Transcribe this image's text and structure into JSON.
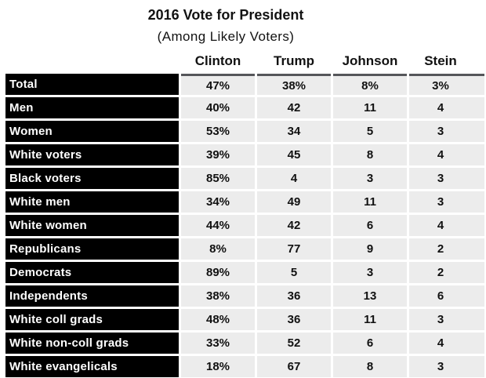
{
  "title": "2016 Vote for President",
  "subtitle": "(Among Likely Voters)",
  "colors": {
    "row_label_bg": "#000000",
    "row_label_fg": "#ffffff",
    "data_cell_bg": "#ececec",
    "data_cell_fg": "#111111",
    "header_rule": "#55565a",
    "page_bg": "#ffffff"
  },
  "chart_data": {
    "type": "table",
    "title": "2016 Vote for President",
    "subtitle": "(Among Likely Voters)",
    "columns": [
      "Clinton",
      "Trump",
      "Johnson",
      "Stein"
    ],
    "rows": [
      {
        "label": "Total",
        "values": [
          "47%",
          "38%",
          "8%",
          "3%"
        ]
      },
      {
        "label": "Men",
        "values": [
          "40%",
          "42",
          "11",
          "4"
        ]
      },
      {
        "label": "Women",
        "values": [
          "53%",
          "34",
          "5",
          "3"
        ]
      },
      {
        "label": "White voters",
        "values": [
          "39%",
          "45",
          "8",
          "4"
        ]
      },
      {
        "label": "Black voters",
        "values": [
          "85%",
          "4",
          "3",
          "3"
        ]
      },
      {
        "label": "White men",
        "values": [
          "34%",
          "49",
          "11",
          "3"
        ]
      },
      {
        "label": "White women",
        "values": [
          "44%",
          "42",
          "6",
          "4"
        ]
      },
      {
        "label": "Republicans",
        "values": [
          "8%",
          "77",
          "9",
          "2"
        ]
      },
      {
        "label": "Democrats",
        "values": [
          "89%",
          "5",
          "3",
          "2"
        ]
      },
      {
        "label": "Independents",
        "values": [
          "38%",
          "36",
          "13",
          "6"
        ]
      },
      {
        "label": "White coll grads",
        "values": [
          "48%",
          "36",
          "11",
          "3"
        ]
      },
      {
        "label": "White non-coll grads",
        "values": [
          "33%",
          "52",
          "6",
          "4"
        ]
      },
      {
        "label": "White evangelicals",
        "values": [
          "18%",
          "67",
          "8",
          "3"
        ]
      }
    ]
  }
}
